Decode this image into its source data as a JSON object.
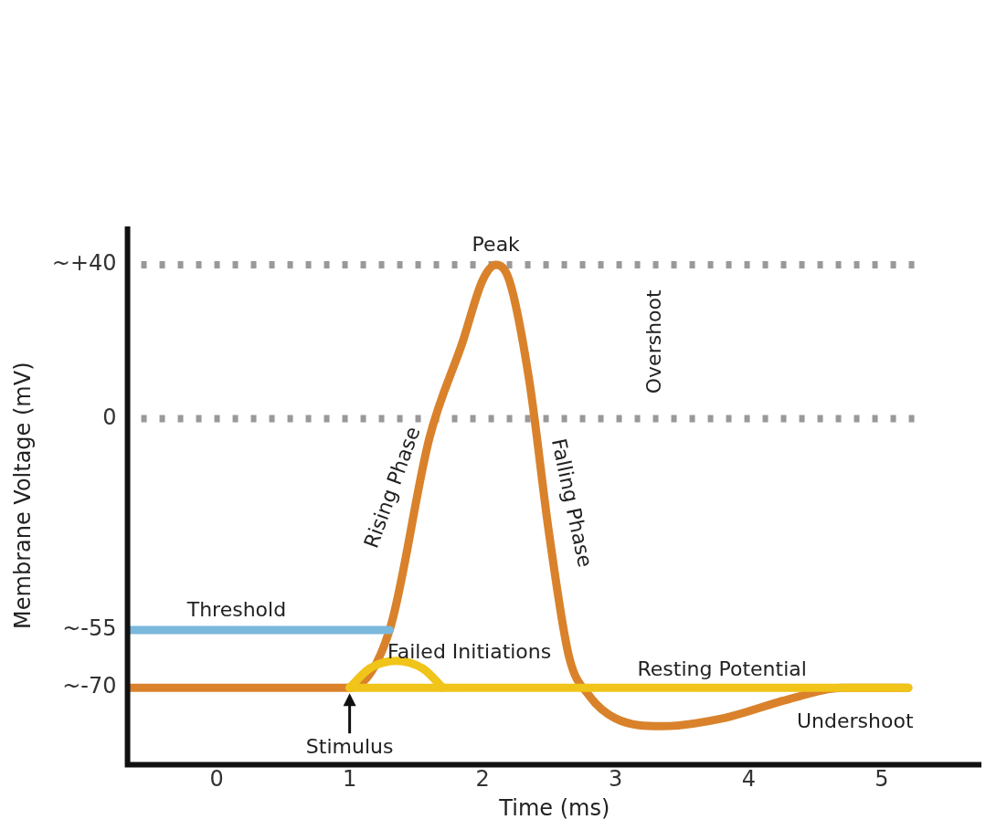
{
  "chart_data": {
    "type": "line",
    "xlabel": "Time (ms)",
    "ylabel": "Membrane Voltage (mV)",
    "xlim": [
      -0.67,
      5.75
    ],
    "xticks": [
      0,
      1,
      2,
      3,
      4,
      5
    ],
    "ylim": [
      -90,
      50
    ],
    "yticks": [
      {
        "value": 40,
        "label": "~+40"
      },
      0,
      {
        "value": -55,
        "label": "~-55"
      },
      {
        "value": -70,
        "label": "~-70"
      }
    ],
    "grid": false,
    "legend": false,
    "marker": "none",
    "line_style": "solid",
    "series": [
      {
        "color": "#f0c419",
        "x": [
          1.0,
          5.2
        ],
        "values": [
          -70,
          -70
        ]
      },
      {
        "color": "#f0c419",
        "x": [
          1.0,
          1.15,
          1.35,
          1.55,
          1.7
        ],
        "values": [
          -70,
          -65,
          -63,
          -65,
          -70
        ]
      },
      {
        "color": "#7ab8dc",
        "x": [
          -0.67,
          1.3
        ],
        "values": [
          -55,
          -55
        ]
      },
      {
        "color": "#d9822b",
        "x": [
          -0.67,
          1.0,
          1.3,
          1.6,
          1.85,
          2.0,
          2.1,
          2.2,
          2.35,
          2.5,
          2.65,
          2.8,
          3.0,
          3.35,
          3.8,
          4.3,
          4.7,
          5.2
        ],
        "values": [
          -70,
          -70,
          -55,
          -5,
          20,
          36,
          40,
          36,
          10,
          -30,
          -62,
          -72,
          -78,
          -80,
          -78,
          -73,
          -70,
          -70
        ]
      }
    ],
    "ref_lines": [
      {
        "axis": "y",
        "value": 40,
        "color": "#999999",
        "line_style": "dotted"
      },
      {
        "axis": "y",
        "value": 0,
        "color": "#999999",
        "line_style": "dotted"
      }
    ],
    "annotations": [
      "Peak",
      "Rising Phase",
      "Falling Phase",
      "Overshoot",
      "Threshold",
      "Failed Initiations",
      "Resting Potential",
      "Undershoot",
      {
        "text": "Stimulus",
        "x": 1.0,
        "y": -70
      }
    ]
  }
}
